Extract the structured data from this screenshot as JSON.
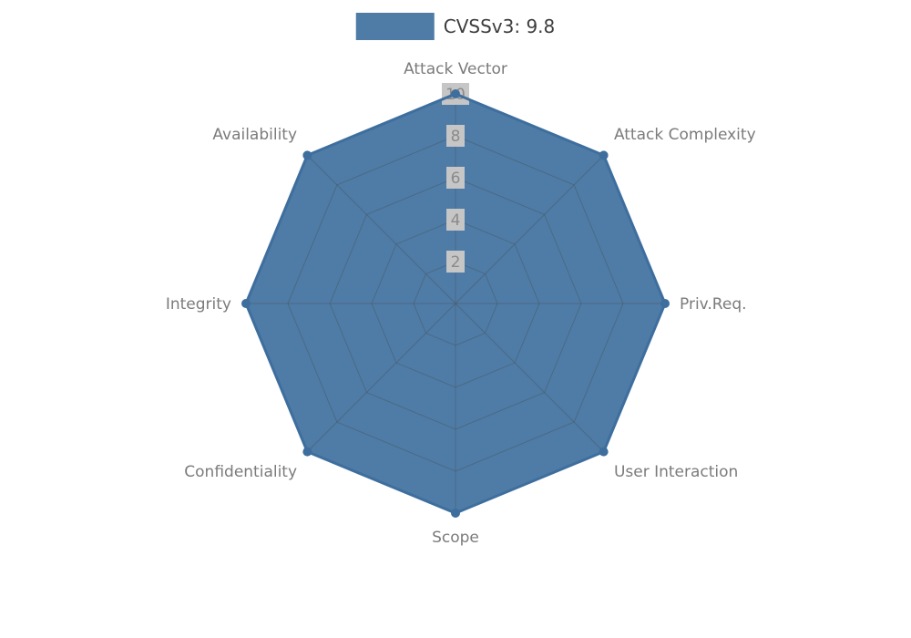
{
  "legend": {
    "label": "CVSSv3: 9.8"
  },
  "chart_data": {
    "type": "radar",
    "categories": [
      "Attack Vector",
      "Attack Complexity",
      "Priv.Req.",
      "User Interaction",
      "Scope",
      "Confidentiality",
      "Integrity",
      "Availability"
    ],
    "series": [
      {
        "name": "CVSSv3: 9.8",
        "values": [
          10,
          10,
          10,
          10,
          10,
          10,
          10,
          10
        ]
      }
    ],
    "radial_ticks": [
      2,
      4,
      6,
      8,
      10
    ],
    "rlim": [
      0,
      10
    ],
    "grid": true,
    "legend_position": "top-center",
    "colors": {
      "fill": "#4e7ca6",
      "line": "#3e6e9e",
      "grid": "#4a5a68",
      "tick_label": "#8a8a8a",
      "tick_label_bg": "#c6c6c6",
      "axis_label": "#7b7b7b",
      "legend_text": "#3d3d3d"
    }
  }
}
